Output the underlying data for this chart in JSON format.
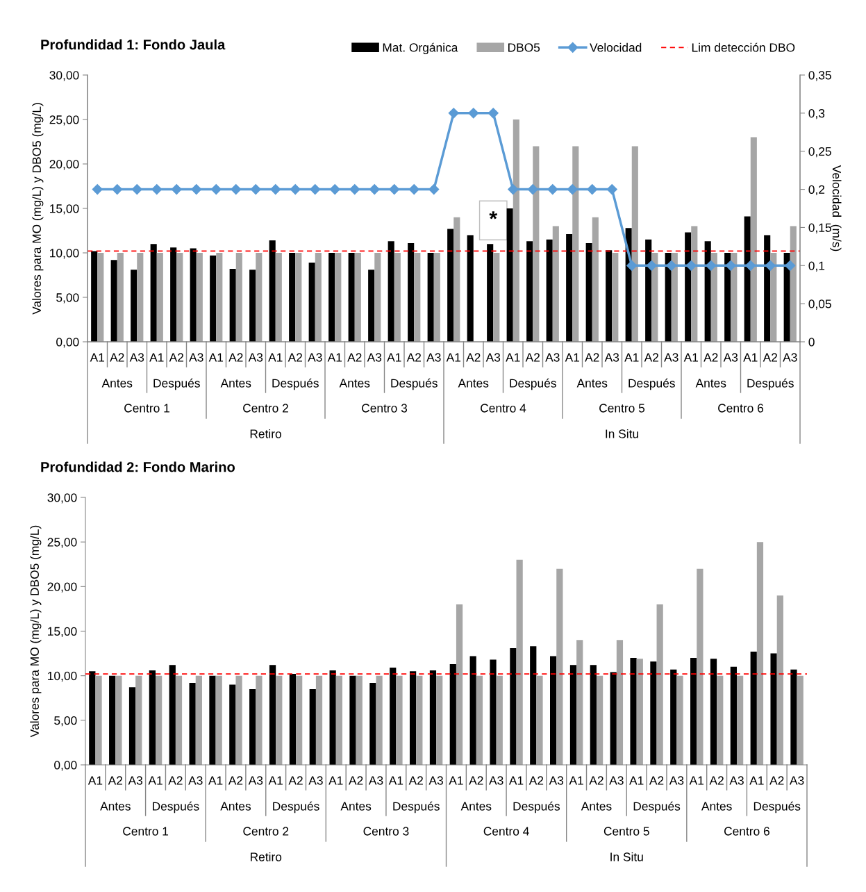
{
  "chart_data": [
    {
      "type": "bar",
      "title": "Profundidad 1: Fondo Jaula",
      "ylabel": "Valores para MO (mg/L) y DBO5 (mg/L)",
      "y2label": "Velocidad  (m/s)",
      "categories": [
        "A1",
        "A2",
        "A3",
        "A1",
        "A2",
        "A3",
        "A1",
        "A2",
        "A3",
        "A1",
        "A2",
        "A3",
        "A1",
        "A2",
        "A3",
        "A1",
        "A2",
        "A3",
        "A1",
        "A2",
        "A3",
        "A1",
        "A2",
        "A3",
        "A1",
        "A2",
        "A3",
        "A1",
        "A2",
        "A3",
        "A1",
        "A2",
        "A3",
        "A1",
        "A2",
        "A3"
      ],
      "series": [
        {
          "name": "Mat. Orgánica",
          "color": "#000000",
          "values": [
            10.2,
            9.2,
            8.1,
            11.0,
            10.6,
            10.5,
            9.7,
            8.2,
            8.1,
            11.4,
            10,
            8.9,
            10,
            10,
            8.1,
            11.3,
            11.1,
            10,
            12.7,
            12.0,
            11.0,
            15.0,
            11.3,
            11.5,
            12.1,
            11.1,
            10.3,
            12.8,
            11.5,
            10,
            12.3,
            11.3,
            10,
            14.1,
            12.0,
            10
          ]
        },
        {
          "name": "DBO5",
          "color": "#a6a6a6",
          "values": [
            10,
            10,
            10,
            10,
            10,
            10,
            10,
            10,
            10,
            10,
            10,
            10,
            10,
            10,
            10,
            10,
            10,
            10,
            14,
            null,
            10,
            25,
            22,
            13,
            22,
            14,
            10,
            22,
            10,
            10,
            13,
            10,
            10,
            23,
            10,
            13
          ]
        },
        {
          "name": "Velocidad",
          "type": "line",
          "axis": "y2",
          "color": "#5b9bd5",
          "marker": "diamond",
          "line_style": "solid",
          "values": [
            0.2,
            0.2,
            0.2,
            0.2,
            0.2,
            0.2,
            0.2,
            0.2,
            0.2,
            0.2,
            0.2,
            0.2,
            0.2,
            0.2,
            0.2,
            0.2,
            0.2,
            0.2,
            0.3,
            0.3,
            0.3,
            0.2,
            0.2,
            0.2,
            0.2,
            0.2,
            0.2,
            0.1,
            0.1,
            0.1,
            0.1,
            0.1,
            0.1,
            0.1,
            0.1,
            0.1
          ]
        }
      ],
      "ylim": [
        0,
        30
      ],
      "yticks": [
        {
          "value": 0,
          "label": "0,00"
        },
        {
          "value": 5,
          "label": "5,00"
        },
        {
          "value": 10,
          "label": "10,00"
        },
        {
          "value": 15,
          "label": "15,00"
        },
        {
          "value": 20,
          "label": "20,00"
        },
        {
          "value": 25,
          "label": "25,00"
        },
        {
          "value": 30,
          "label": "30,00"
        }
      ],
      "y2lim": [
        0,
        0.35
      ],
      "y2ticks": [
        0,
        {
          "value": 0.05,
          "label": "0,05"
        },
        {
          "value": 0.1,
          "label": "0,1"
        },
        {
          "value": 0.15,
          "label": "0,15"
        },
        {
          "value": 0.2,
          "label": "0,2"
        },
        {
          "value": 0.25,
          "label": "0,25"
        },
        {
          "value": 0.3,
          "label": "0,3"
        },
        {
          "value": 0.35,
          "label": "0,35"
        }
      ],
      "ref_lines": [
        {
          "axis": "y",
          "value": 10.2,
          "label": "Lim detección DBO",
          "color": "#ff0000",
          "line_style": "dashed"
        }
      ],
      "annotations": [
        "Antes",
        "Después",
        "Antes",
        "Después",
        "Antes",
        "Después",
        "Antes",
        "Después",
        "Antes",
        "Después",
        "Antes",
        "Después",
        "Centro 1",
        "Centro 2",
        "Centro 3",
        "Centro 4",
        "Centro 5",
        "Centro 6",
        "Retiro",
        "In Situ",
        "*"
      ],
      "legend": "top",
      "grid": false
    },
    {
      "type": "bar",
      "title": "Profundidad 2: Fondo Marino",
      "ylabel": "Valores para MO (mg/L) y DBO5 (mg/L)",
      "categories": [
        "A1",
        "A2",
        "A3",
        "A1",
        "A2",
        "A3",
        "A1",
        "A2",
        "A3",
        "A1",
        "A2",
        "A3",
        "A1",
        "A2",
        "A3",
        "A1",
        "A2",
        "A3",
        "A1",
        "A2",
        "A3",
        "A1",
        "A2",
        "A3",
        "A1",
        "A2",
        "A3",
        "A1",
        "A2",
        "A3",
        "A1",
        "A2",
        "A3",
        "A1",
        "A2",
        "A3"
      ],
      "series": [
        {
          "color": "#000000",
          "values": [
            10.5,
            10,
            8.7,
            10.6,
            11.2,
            9.2,
            10,
            9.0,
            8.5,
            11.2,
            10.2,
            8.5,
            10.6,
            10,
            9.2,
            10.9,
            10.5,
            10.6,
            11.3,
            12.2,
            11.8,
            13.1,
            13.3,
            12.2,
            11.2,
            11.2,
            10.4,
            12.0,
            11.6,
            10.7,
            12.0,
            11.9,
            11.0,
            12.7,
            12.5,
            10.7
          ]
        },
        {
          "color": "#a6a6a6",
          "values": [
            10,
            10,
            10,
            10,
            10,
            10,
            10,
            10,
            10,
            10,
            10,
            10,
            10,
            10,
            10,
            10,
            10,
            10,
            18,
            10,
            10,
            23,
            10,
            22,
            14,
            10,
            14,
            11.9,
            18,
            10,
            22,
            10,
            10,
            25,
            19,
            10
          ]
        }
      ],
      "ylim": [
        0,
        30
      ],
      "yticks": [
        {
          "value": 0,
          "label": "0,00"
        },
        {
          "value": 5,
          "label": "5,00"
        },
        {
          "value": 10,
          "label": "10,00"
        },
        {
          "value": 15,
          "label": "15,00"
        },
        {
          "value": 20,
          "label": "20,00"
        },
        {
          "value": 25,
          "label": "25,00"
        },
        {
          "value": 30,
          "label": "30,00"
        }
      ],
      "ref_lines": [
        {
          "axis": "y",
          "value": 10.2,
          "color": "#ff0000",
          "line_style": "dashed"
        }
      ],
      "annotations": [
        "Antes",
        "Después",
        "Antes",
        "Después",
        "Antes",
        "Después",
        "Antes",
        "Después",
        "Antes",
        "Después",
        "Antes",
        "Después",
        "Centro 1",
        "Centro 2",
        "Centro 3",
        "Centro 4",
        "Centro 5",
        "Centro 6",
        "Retiro",
        "In Situ"
      ],
      "legend": false,
      "grid": false
    }
  ]
}
